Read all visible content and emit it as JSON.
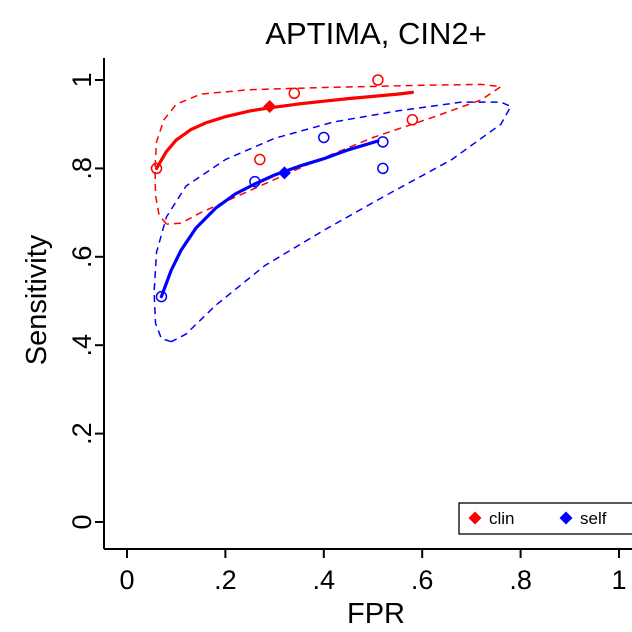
{
  "chart_data": {
    "type": "scatter",
    "title": "APTIMA, CIN2+",
    "xlabel": "FPR",
    "ylabel": "Sensitivity",
    "xlim": [
      0,
      1
    ],
    "ylim": [
      0,
      1
    ],
    "x_ticks": [
      0,
      0.2,
      0.4,
      0.6,
      0.8,
      1
    ],
    "x_tick_labels": [
      "0",
      ".2",
      ".4",
      ".6",
      ".8",
      "1"
    ],
    "y_ticks": [
      0,
      0.2,
      0.4,
      0.6,
      0.8,
      1
    ],
    "y_tick_labels": [
      "0",
      ".2",
      ".4",
      ".6",
      ".8",
      "1"
    ],
    "grid": false,
    "legend": {
      "placement": "bottom-right",
      "entries": [
        "clin",
        "self"
      ]
    },
    "series": [
      {
        "name": "clin",
        "color": "#ff0000",
        "studies": [
          {
            "x": 0.06,
            "y": 0.8
          },
          {
            "x": 0.27,
            "y": 0.82
          },
          {
            "x": 0.34,
            "y": 0.97
          },
          {
            "x": 0.51,
            "y": 1.0
          },
          {
            "x": 0.58,
            "y": 0.91
          }
        ],
        "summary_point": {
          "x": 0.29,
          "y": 0.94
        },
        "sroc_curve": [
          [
            0.06,
            0.8
          ],
          [
            0.08,
            0.838
          ],
          [
            0.1,
            0.864
          ],
          [
            0.13,
            0.888
          ],
          [
            0.16,
            0.903
          ],
          [
            0.2,
            0.917
          ],
          [
            0.25,
            0.93
          ],
          [
            0.29,
            0.937
          ],
          [
            0.35,
            0.946
          ],
          [
            0.4,
            0.952
          ],
          [
            0.45,
            0.958
          ],
          [
            0.5,
            0.963
          ],
          [
            0.55,
            0.968
          ],
          [
            0.58,
            0.972
          ]
        ],
        "confidence_region": [
          [
            0.08,
            0.674
          ],
          [
            0.065,
            0.695
          ],
          [
            0.058,
            0.74
          ],
          [
            0.057,
            0.8
          ],
          [
            0.06,
            0.86
          ],
          [
            0.075,
            0.91
          ],
          [
            0.1,
            0.945
          ],
          [
            0.15,
            0.968
          ],
          [
            0.25,
            0.978
          ],
          [
            0.4,
            0.983
          ],
          [
            0.6,
            0.988
          ],
          [
            0.72,
            0.99
          ],
          [
            0.76,
            0.985
          ],
          [
            0.72,
            0.955
          ],
          [
            0.62,
            0.915
          ],
          [
            0.5,
            0.87
          ],
          [
            0.38,
            0.815
          ],
          [
            0.25,
            0.75
          ],
          [
            0.15,
            0.7
          ],
          [
            0.11,
            0.676
          ],
          [
            0.08,
            0.674
          ]
        ]
      },
      {
        "name": "self",
        "color": "#0000ff",
        "studies": [
          {
            "x": 0.07,
            "y": 0.51
          },
          {
            "x": 0.26,
            "y": 0.77
          },
          {
            "x": 0.4,
            "y": 0.87
          },
          {
            "x": 0.52,
            "y": 0.86
          },
          {
            "x": 0.52,
            "y": 0.8
          }
        ],
        "summary_point": {
          "x": 0.32,
          "y": 0.79
        },
        "sroc_curve": [
          [
            0.07,
            0.51
          ],
          [
            0.09,
            0.57
          ],
          [
            0.11,
            0.615
          ],
          [
            0.14,
            0.665
          ],
          [
            0.18,
            0.71
          ],
          [
            0.22,
            0.742
          ],
          [
            0.26,
            0.765
          ],
          [
            0.3,
            0.785
          ],
          [
            0.35,
            0.805
          ],
          [
            0.4,
            0.822
          ],
          [
            0.45,
            0.842
          ],
          [
            0.51,
            0.862
          ]
        ],
        "confidence_region": [
          [
            0.09,
            0.408
          ],
          [
            0.07,
            0.415
          ],
          [
            0.058,
            0.45
          ],
          [
            0.055,
            0.52
          ],
          [
            0.06,
            0.61
          ],
          [
            0.08,
            0.69
          ],
          [
            0.12,
            0.76
          ],
          [
            0.2,
            0.82
          ],
          [
            0.3,
            0.868
          ],
          [
            0.42,
            0.905
          ],
          [
            0.55,
            0.93
          ],
          [
            0.68,
            0.95
          ],
          [
            0.76,
            0.95
          ],
          [
            0.78,
            0.94
          ],
          [
            0.76,
            0.9
          ],
          [
            0.66,
            0.82
          ],
          [
            0.52,
            0.735
          ],
          [
            0.4,
            0.66
          ],
          [
            0.28,
            0.58
          ],
          [
            0.18,
            0.49
          ],
          [
            0.12,
            0.425
          ],
          [
            0.09,
            0.408
          ]
        ]
      }
    ]
  }
}
